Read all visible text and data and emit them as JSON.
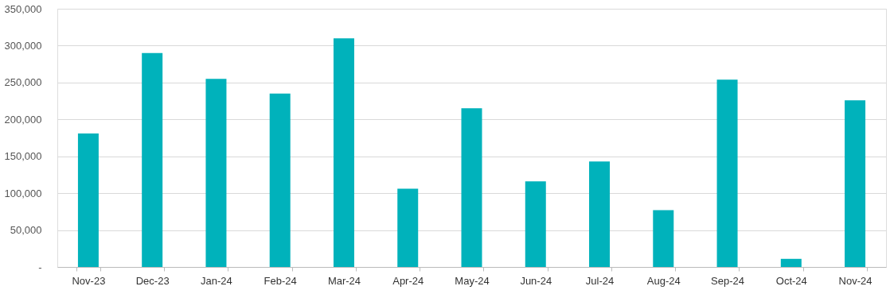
{
  "chart_data": {
    "type": "bar",
    "categories": [
      "Nov-23",
      "Dec-23",
      "Jan-24",
      "Feb-24",
      "Mar-24",
      "Apr-24",
      "May-24",
      "Jun-24",
      "Jul-24",
      "Aug-24",
      "Sep-24",
      "Oct-24",
      "Nov-24"
    ],
    "series": [
      {
        "color": "#00b2bb",
        "values": [
          181000,
          290000,
          255000,
          235000,
          310000,
          106000,
          215000,
          116000,
          143000,
          77000,
          254000,
          11000,
          226000
        ]
      }
    ],
    "ylim": [
      0,
      350000
    ],
    "yticks": [
      {
        "value": 0,
        "label": "-"
      },
      {
        "value": 50000,
        "label": "50,000"
      },
      {
        "value": 100000,
        "label": "100,000"
      },
      {
        "value": 150000,
        "label": "150,000"
      },
      {
        "value": 200000,
        "label": "200,000"
      },
      {
        "value": 250000,
        "label": "250,000"
      },
      {
        "value": 300000,
        "label": "300,000"
      },
      {
        "value": 350000,
        "label": "350,000"
      }
    ],
    "grid": "y",
    "legend": false
  }
}
